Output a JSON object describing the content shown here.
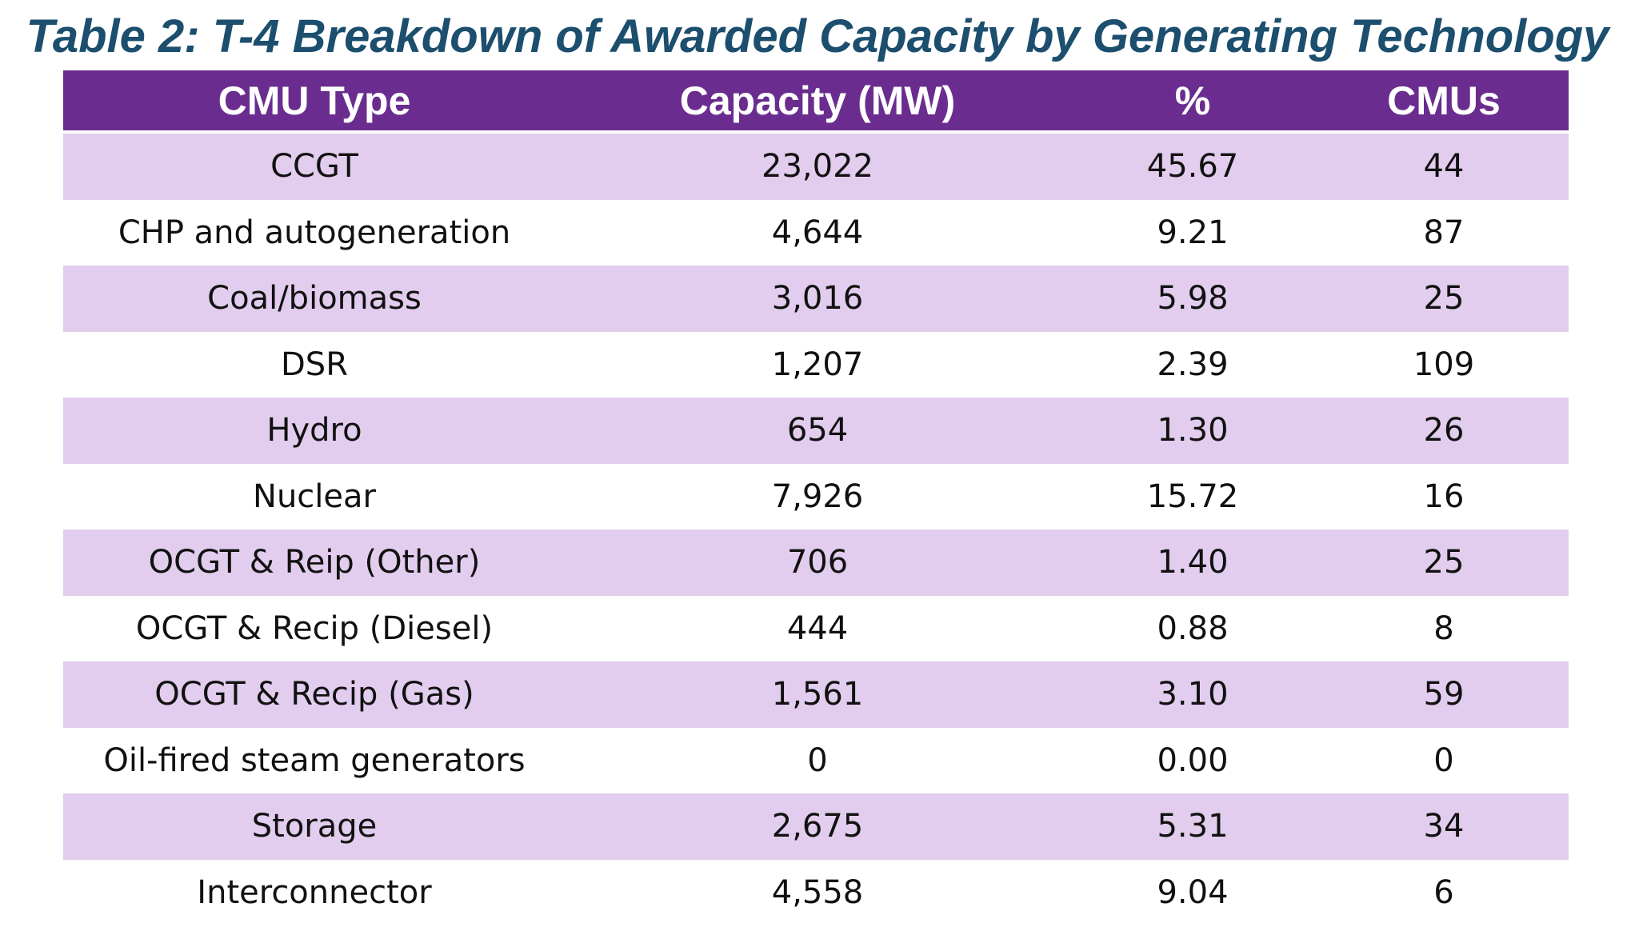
{
  "title": "Table 2: T-4 Breakdown of Awarded Capacity by Generating Technology",
  "table": {
    "header": [
      "CMU Type",
      "Capacity (MW)",
      "%",
      "CMUs"
    ],
    "rows": [
      [
        "CCGT",
        "23,022",
        "45.67",
        "44"
      ],
      [
        "CHP and autogeneration",
        "4,644",
        "9.21",
        "87"
      ],
      [
        "Coal/biomass",
        "3,016",
        "5.98",
        "25"
      ],
      [
        "DSR",
        "1,207",
        "2.39",
        "109"
      ],
      [
        "Hydro",
        "654",
        "1.30",
        "26"
      ],
      [
        "Nuclear",
        "7,926",
        "15.72",
        "16"
      ],
      [
        "OCGT & Reip (Other)",
        "706",
        "1.40",
        "25"
      ],
      [
        "OCGT & Recip (Diesel)",
        "444",
        "0.88",
        "8"
      ],
      [
        "OCGT & Recip (Gas)",
        "1,561",
        "3.10",
        "59"
      ],
      [
        "Oil-fired steam generators",
        "0",
        "0.00",
        "0"
      ],
      [
        "Storage",
        "2,675",
        "5.31",
        "34"
      ],
      [
        "Interconnector",
        "4,558",
        "9.04",
        "6"
      ]
    ]
  }
}
